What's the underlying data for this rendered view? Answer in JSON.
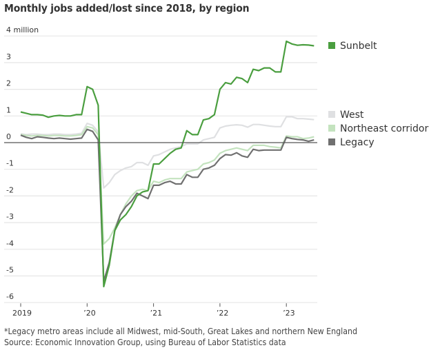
{
  "chart_data": {
    "type": "line",
    "title": "Monthly jobs added/lost since 2018, by region",
    "xlabel": "",
    "ylabel": "",
    "y_unit_label": "4 million",
    "ylim": [
      -6,
      4
    ],
    "yticks": [
      4,
      3,
      2,
      1,
      0,
      -1,
      -2,
      -3,
      -4,
      -5,
      -6
    ],
    "ytick_labels": [
      "4 million",
      "3",
      "2",
      "1",
      "0",
      "-1",
      "-2",
      "-3",
      "-4",
      "-5",
      "-6"
    ],
    "xticks": [
      "2019-01",
      "2020-01",
      "2021-01",
      "2022-01",
      "2023-01"
    ],
    "xtick_labels": [
      "2019",
      "’20",
      "’21",
      "’22",
      "’23"
    ],
    "x_start": "2019-01",
    "x_end": "2023-06",
    "grid": true,
    "legend_placement": "right",
    "series": [
      {
        "name": "Sunbelt",
        "color": "#4a9e3f",
        "values": [
          1.15,
          1.1,
          1.05,
          1.05,
          1.03,
          0.95,
          1.0,
          1.02,
          1.0,
          1.0,
          1.05,
          1.05,
          2.1,
          2.0,
          1.4,
          -5.4,
          -4.6,
          -3.3,
          -2.9,
          -2.7,
          -2.4,
          -2.0,
          -1.85,
          -1.8,
          -0.8,
          -0.8,
          -0.6,
          -0.4,
          -0.25,
          -0.2,
          0.45,
          0.3,
          0.3,
          0.85,
          0.9,
          1.05,
          2.0,
          2.25,
          2.2,
          2.45,
          2.4,
          2.25,
          2.75,
          2.7,
          2.8,
          2.8,
          2.65,
          2.65,
          3.8,
          3.7,
          3.65,
          3.67,
          3.66,
          3.63
        ]
      },
      {
        "name": "West",
        "color": "#dfe0e2",
        "values": [
          0.33,
          0.3,
          0.32,
          0.32,
          0.3,
          0.3,
          0.32,
          0.32,
          0.3,
          0.3,
          0.32,
          0.35,
          0.72,
          0.65,
          0.4,
          -1.7,
          -1.5,
          -1.2,
          -1.05,
          -0.95,
          -0.9,
          -0.75,
          -0.75,
          -0.85,
          -0.5,
          -0.45,
          -0.35,
          -0.25,
          -0.2,
          -0.15,
          -0.05,
          -0.05,
          -0.05,
          0.1,
          0.15,
          0.2,
          0.55,
          0.62,
          0.65,
          0.67,
          0.65,
          0.58,
          0.68,
          0.68,
          0.65,
          0.62,
          0.6,
          0.6,
          0.97,
          0.97,
          0.9,
          0.9,
          0.88,
          0.86
        ]
      },
      {
        "name": "Northeast corridor",
        "color": "#c4e3bf",
        "values": [
          0.3,
          0.27,
          0.25,
          0.27,
          0.27,
          0.25,
          0.27,
          0.27,
          0.25,
          0.25,
          0.27,
          0.3,
          0.6,
          0.55,
          0.3,
          -3.8,
          -3.6,
          -3.2,
          -2.7,
          -2.3,
          -2.0,
          -1.8,
          -1.75,
          -1.8,
          -1.45,
          -1.5,
          -1.4,
          -1.35,
          -1.35,
          -1.35,
          -1.1,
          -1.05,
          -1.0,
          -0.8,
          -0.75,
          -0.65,
          -0.4,
          -0.3,
          -0.25,
          -0.2,
          -0.25,
          -0.3,
          -0.1,
          -0.1,
          -0.1,
          -0.15,
          -0.17,
          -0.2,
          0.25,
          0.22,
          0.22,
          0.15,
          0.17,
          0.22
        ]
      },
      {
        "name": "Legacy",
        "color": "#707070",
        "values": [
          0.28,
          0.2,
          0.15,
          0.22,
          0.2,
          0.17,
          0.15,
          0.17,
          0.15,
          0.13,
          0.15,
          0.17,
          0.5,
          0.42,
          0.1,
          -5.2,
          -4.5,
          -3.3,
          -2.7,
          -2.4,
          -2.2,
          -1.9,
          -2.0,
          -2.1,
          -1.6,
          -1.6,
          -1.5,
          -1.45,
          -1.55,
          -1.55,
          -1.2,
          -1.3,
          -1.3,
          -1.0,
          -0.95,
          -0.85,
          -0.6,
          -0.45,
          -0.47,
          -0.38,
          -0.5,
          -0.55,
          -0.25,
          -0.3,
          -0.28,
          -0.28,
          -0.28,
          -0.28,
          0.2,
          0.15,
          0.12,
          0.1,
          0.05,
          0.1
        ]
      }
    ],
    "footnotes": [
      "*Legacy metro areas include all Midwest, mid-South, Great Lakes and northern New England",
      "Source: Economic Innovation Group, using Bureau of Labor Statistics data"
    ]
  }
}
